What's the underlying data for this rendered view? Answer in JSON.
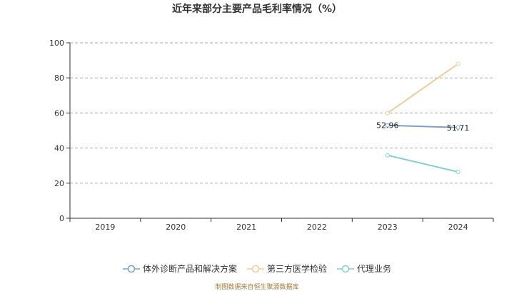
{
  "chart_data": {
    "type": "line",
    "title": "近年来部分主要产品毛利率情况（%）",
    "categories": [
      "2019",
      "2020",
      "2021",
      "2022",
      "2023",
      "2024"
    ],
    "ylim": [
      0,
      100
    ],
    "yticks": [
      "0",
      "20",
      "40",
      "60",
      "80",
      "100"
    ],
    "grid": true,
    "legend_position": "bottom",
    "series": [
      {
        "name": "体外诊断产品和解决方案",
        "color": "#7e9fc8",
        "values": [
          null,
          null,
          null,
          null,
          52.96,
          51.71
        ],
        "labels": [
          null,
          null,
          null,
          null,
          "52.96",
          "51.71"
        ]
      },
      {
        "name": "第三方医学检验",
        "color": "#f0cc9a",
        "values": [
          null,
          null,
          null,
          null,
          59.9,
          88.0
        ],
        "labels": [
          null,
          null,
          null,
          null,
          null,
          null
        ]
      },
      {
        "name": "代理业务",
        "color": "#7fd0cc",
        "values": [
          null,
          null,
          null,
          null,
          35.9,
          26.4
        ],
        "labels": [
          null,
          null,
          null,
          null,
          null,
          null
        ]
      }
    ]
  },
  "footer": {
    "source": "制图数据来自恒生聚源数据库"
  }
}
